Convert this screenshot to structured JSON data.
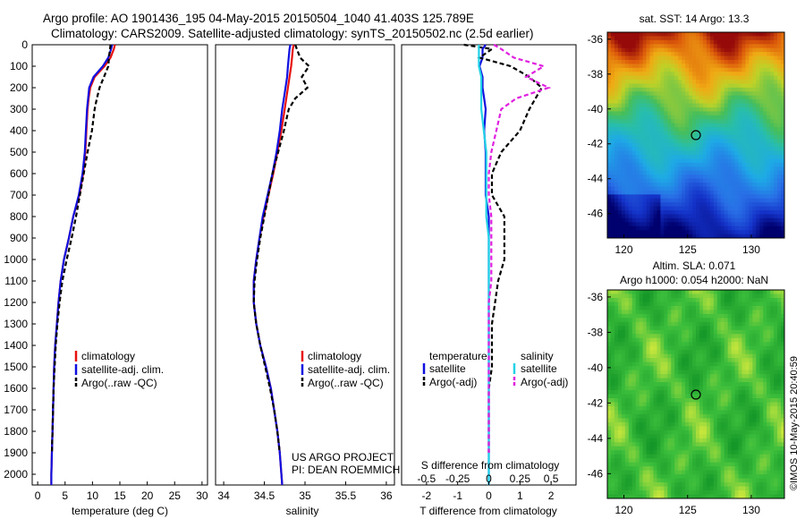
{
  "header": {
    "line1": "Argo profile: AO 1901436_195 04-May-2015 20150504_1040 41.403S 125.789E",
    "line2": "Climatology: CARS2009. Satellite-adjusted climatology: synTS_20150502.nc (2.5d earlier)"
  },
  "colors": {
    "climatology": "#e8110f",
    "satellite": "#1010e0",
    "argo": "#000000",
    "sal_satellite": "#22d3e6",
    "sal_argo": "#e020e0"
  },
  "depth_ticks": [
    "0",
    "100",
    "200",
    "300",
    "400",
    "500",
    "600",
    "700",
    "800",
    "900",
    "1000",
    "1100",
    "1200",
    "1300",
    "1400",
    "1500",
    "1600",
    "1700",
    "1800",
    "1900",
    "2000"
  ],
  "panels": {
    "temperature": {
      "xlabel": "temperature (deg C)",
      "xticks": [
        "0",
        "5",
        "10",
        "15",
        "20",
        "25",
        "30"
      ],
      "legend": [
        "climatology",
        "satellite-adj. clim.",
        "Argo(..raw -QC)"
      ]
    },
    "salinity": {
      "xlabel": "salinity",
      "xticks": [
        "34",
        "34.5",
        "35",
        "35.5",
        "36"
      ],
      "legend": [
        "climatology",
        "satellite-adj. clim.",
        "Argo(..raw -QC)"
      ],
      "note1": "US ARGO PROJECT",
      "note2": "PI: DEAN ROEMMICH"
    },
    "difference": {
      "xlabel": "T difference from climatology",
      "top_label": "S difference from climatology",
      "xticks": [
        "-2",
        "-1",
        "0",
        "1",
        "2"
      ],
      "top_ticks": [
        "-0.5",
        "-0.25",
        "0",
        "0.25",
        "0.5"
      ],
      "legend_t_title": "temperature",
      "legend_s_title": "salinity",
      "legend_t": [
        "satellite",
        "Argo(-adj)"
      ],
      "legend_s": [
        "satellite",
        "Argo(-adj)"
      ]
    }
  },
  "maps": {
    "sst_title": "sat. SST: 14 Argo: 13.3",
    "sla_title1": "Altim. SLA: 0.071",
    "sla_title2": "Argo h1000: 0.054 h2000: NaN",
    "xticks": [
      "120",
      "125",
      "130"
    ],
    "yticks": [
      "-36",
      "-38",
      "-40",
      "-42",
      "-44",
      "-46"
    ],
    "stamp": "©IMOS 10-May-2015 20:40:59"
  },
  "chart_data": [
    {
      "type": "line",
      "name": "temperature profile",
      "xlabel": "temperature (deg C)",
      "ylabel": "",
      "xlim": [
        -1,
        31
      ],
      "ylim": [
        2050,
        0
      ],
      "y": [
        0,
        20,
        60,
        100,
        150,
        200,
        250,
        300,
        400,
        500,
        600,
        700,
        800,
        900,
        1000,
        1100,
        1200,
        1300,
        1400,
        1500,
        1600,
        1700,
        1800,
        1900,
        2000,
        2050
      ],
      "series": [
        {
          "name": "climatology",
          "values": [
            14.1,
            13.9,
            13.3,
            12.2,
            10.4,
            9.6,
            9.3,
            9.1,
            8.9,
            8.7,
            8.3,
            7.6,
            6.5,
            5.7,
            4.8,
            4.2,
            3.8,
            3.5,
            3.2,
            3.0,
            2.9,
            2.8,
            2.7,
            2.6,
            2.5,
            2.5
          ]
        },
        {
          "name": "satellite-adj. clim.",
          "values": [
            13.6,
            13.4,
            12.9,
            11.9,
            10.2,
            9.4,
            9.2,
            9.0,
            8.8,
            8.6,
            8.2,
            7.5,
            6.5,
            5.7,
            4.8,
            4.2,
            3.8,
            3.5,
            3.2,
            3.0,
            2.9,
            2.8,
            2.7,
            2.6,
            2.5,
            2.5
          ]
        },
        {
          "name": "Argo(..raw -QC)",
          "values": [
            13.3,
            13.2,
            13.0,
            12.9,
            12.1,
            11.3,
            10.8,
            10.4,
            9.9,
            9.1,
            8.4,
            7.7,
            7.0,
            6.2,
            5.3,
            4.5,
            4.0,
            3.6,
            3.3,
            3.1,
            2.9,
            2.8,
            2.7,
            2.6,
            null,
            null
          ]
        }
      ]
    },
    {
      "type": "line",
      "name": "salinity profile",
      "xlabel": "salinity",
      "xlim": [
        33.9,
        36.1
      ],
      "ylim": [
        2050,
        0
      ],
      "y": [
        0,
        20,
        60,
        100,
        150,
        200,
        250,
        300,
        400,
        500,
        600,
        700,
        800,
        900,
        1000,
        1100,
        1200,
        1300,
        1400,
        1500,
        1600,
        1700,
        1800,
        1900,
        2000,
        2050
      ],
      "series": [
        {
          "name": "climatology",
          "values": [
            34.86,
            34.85,
            34.84,
            34.83,
            34.81,
            34.79,
            34.77,
            34.75,
            34.71,
            34.66,
            34.61,
            34.55,
            34.49,
            34.44,
            34.4,
            34.37,
            34.37,
            34.4,
            34.45,
            34.52,
            34.58,
            34.62,
            34.66,
            34.69,
            34.71,
            34.72
          ]
        },
        {
          "name": "satellite-adj. clim.",
          "values": [
            34.82,
            34.81,
            34.8,
            34.79,
            34.78,
            34.76,
            34.74,
            34.72,
            34.69,
            34.65,
            34.6,
            34.54,
            34.48,
            34.44,
            34.4,
            34.37,
            34.37,
            34.4,
            34.45,
            34.52,
            34.58,
            34.62,
            34.66,
            34.69,
            34.71,
            34.72
          ]
        },
        {
          "name": "Argo(..raw -QC)",
          "values": [
            34.88,
            34.9,
            34.94,
            35.05,
            34.96,
            35.03,
            34.88,
            34.8,
            34.74,
            34.67,
            34.6,
            34.55,
            34.5,
            34.45,
            34.41,
            34.38,
            34.37,
            34.4,
            34.45,
            34.51,
            34.57,
            34.62,
            34.66,
            34.69,
            null,
            null
          ]
        }
      ]
    },
    {
      "type": "line",
      "name": "difference from climatology",
      "xlabel": "T difference from climatology",
      "xlim": [
        -2.8,
        2.8
      ],
      "ylim": [
        2050,
        0
      ],
      "y": [
        0,
        20,
        60,
        100,
        150,
        200,
        250,
        300,
        400,
        500,
        600,
        700,
        800,
        900,
        1000,
        1100,
        1200,
        1300,
        1400,
        1500,
        1600,
        1700,
        1800,
        1900,
        2000,
        2050
      ],
      "series": [
        {
          "name": "temperature satellite",
          "values": [
            -0.1,
            -0.2,
            -0.2,
            -0.3,
            -0.2,
            -0.2,
            -0.15,
            -0.1,
            -0.15,
            -0.1,
            -0.1,
            -0.1,
            0.0,
            0.0,
            0.0,
            0.0,
            0.0,
            0.0,
            0.0,
            0.0,
            0.0,
            0.0,
            0.0,
            0.0,
            0.0,
            0.0
          ]
        },
        {
          "name": "temperature Argo(-adj)",
          "values": [
            -0.8,
            0.1,
            -0.3,
            0.7,
            1.3,
            1.7,
            1.5,
            1.3,
            1.0,
            0.4,
            0.1,
            0.1,
            0.5,
            0.5,
            0.5,
            0.3,
            0.2,
            0.1,
            0.1,
            0.1,
            0.0,
            0.0,
            0.0,
            0.0,
            null,
            null
          ]
        },
        {
          "name": "salinity satellite",
          "values": [
            -0.04,
            -0.04,
            -0.04,
            -0.04,
            -0.03,
            -0.03,
            -0.03,
            -0.03,
            -0.02,
            -0.01,
            -0.01,
            -0.01,
            -0.01,
            0.0,
            0.0,
            0.0,
            0.0,
            0.0,
            0.0,
            0.0,
            0.0,
            0.0,
            0.0,
            0.0,
            0.0,
            0.0
          ]
        },
        {
          "name": "salinity Argo(-adj)",
          "values": [
            0.02,
            0.05,
            0.1,
            0.22,
            0.15,
            0.24,
            0.11,
            0.05,
            0.03,
            0.01,
            0.0,
            0.0,
            0.01,
            0.01,
            0.01,
            0.01,
            0.0,
            0.0,
            0.0,
            0.0,
            0.0,
            0.0,
            0.0,
            0.0,
            null,
            null
          ]
        }
      ]
    },
    {
      "type": "heatmap",
      "name": "sat. SST map",
      "title": "sat. SST: 14 Argo: 13.3",
      "xlim": [
        118.7,
        132.6
      ],
      "ylim": [
        -47.4,
        -35.6
      ],
      "float_position": [
        125.789,
        -41.403
      ]
    },
    {
      "type": "heatmap",
      "name": "altimetry SLA map",
      "title": "Altim. SLA: 0.071",
      "xlim": [
        118.7,
        132.6
      ],
      "ylim": [
        -47.4,
        -35.6
      ],
      "float_position": [
        125.789,
        -41.403
      ]
    }
  ]
}
